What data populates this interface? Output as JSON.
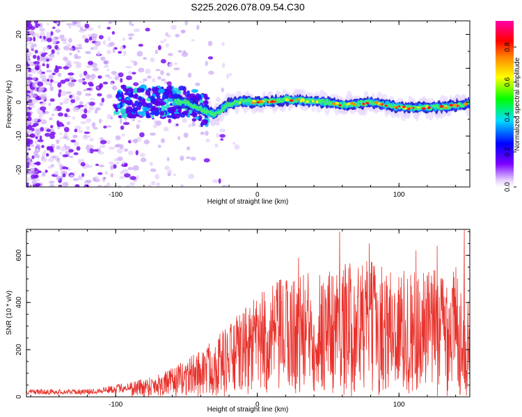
{
  "title": "S225.2026.078.09.54.C30",
  "chart_data": [
    {
      "type": "heatmap",
      "name": "spectrogram",
      "xlabel": "Height of straight line (km)",
      "ylabel": "Frequency (Hz)",
      "xlim": [
        -163,
        150
      ],
      "ylim": [
        -25,
        24
      ],
      "xticks": [
        -100,
        0,
        100
      ],
      "yticks": [
        -20,
        -10,
        0,
        10,
        20
      ],
      "colorbar": {
        "label": "Normalized spectral amplitude",
        "range": [
          0.0,
          0.95
        ],
        "ticks": [
          0.0,
          0.2,
          0.4,
          0.6,
          0.8
        ]
      },
      "ridge_frequency_hz": [
        [
          -60,
          0.0
        ],
        [
          -50,
          0.0
        ],
        [
          -40,
          -2.0
        ],
        [
          -35,
          -3.0
        ],
        [
          -30,
          -3.5
        ],
        [
          -25,
          -2.0
        ],
        [
          -20,
          -0.5
        ],
        [
          -10,
          0.3
        ],
        [
          0,
          0.0
        ],
        [
          10,
          0.2
        ],
        [
          20,
          0.8
        ],
        [
          30,
          0.5
        ],
        [
          40,
          0.3
        ],
        [
          50,
          0.0
        ],
        [
          60,
          -0.8
        ],
        [
          70,
          -0.5
        ],
        [
          80,
          0.0
        ],
        [
          90,
          -0.8
        ],
        [
          100,
          -1.5
        ],
        [
          110,
          -1.8
        ],
        [
          120,
          -1.5
        ],
        [
          130,
          -1.5
        ],
        [
          140,
          -1.0
        ],
        [
          150,
          -0.5
        ]
      ]
    },
    {
      "type": "line",
      "name": "snr",
      "xlabel": "Height of straight line (km)",
      "ylabel": "SNR (10 * v/v)",
      "xlim": [
        -163,
        150
      ],
      "ylim": [
        0,
        710
      ],
      "xticks": [
        -100,
        0,
        100
      ],
      "yticks": [
        0,
        200,
        400,
        600
      ],
      "series": [
        {
          "name": "SNR",
          "color": "#e8302a",
          "envelope": {
            "x": [
              -163,
              -120,
              -100,
              -80,
              -60,
              -40,
              -20,
              0,
              20,
              40,
              60,
              80,
              100,
              120,
              140,
              150
            ],
            "y": [
              25,
              25,
              40,
              60,
              90,
              150,
              230,
              320,
              380,
              400,
              420,
              430,
              400,
              400,
              420,
              280
            ]
          },
          "peaks": [
            {
              "x": 29,
              "y": 590
            },
            {
              "x": 58,
              "y": 700
            },
            {
              "x": 79,
              "y": 650
            },
            {
              "x": 112,
              "y": 620
            },
            {
              "x": 127,
              "y": 640
            },
            {
              "x": 146,
              "y": 710
            }
          ]
        }
      ]
    }
  ]
}
